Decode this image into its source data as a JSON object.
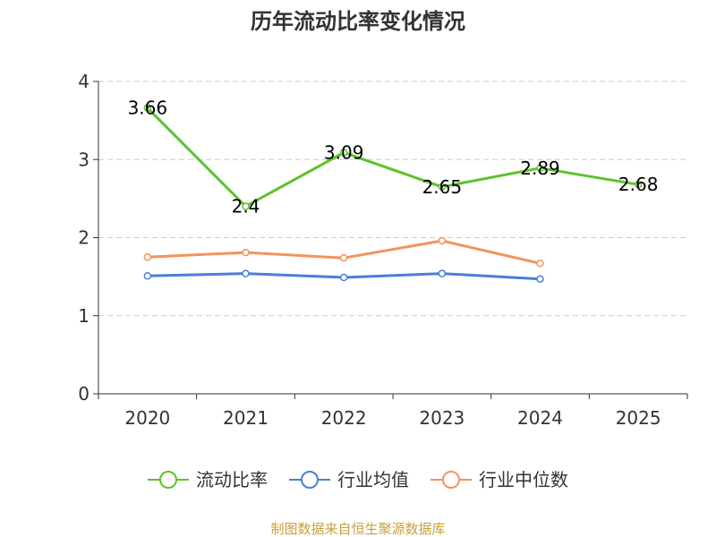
{
  "chart_data": {
    "type": "line",
    "title": "历年流动比率变化情况",
    "categories": [
      "2020",
      "2021",
      "2022",
      "2023",
      "2024",
      "2025"
    ],
    "y_ticks": [
      "0",
      "1",
      "2",
      "3",
      "4"
    ],
    "ylim": [
      0,
      4
    ],
    "grid": true,
    "legend_position": "bottom",
    "series": [
      {
        "name": "流动比率",
        "color": "#5ec22b",
        "values": [
          3.66,
          2.4,
          3.09,
          2.65,
          2.89,
          2.68
        ],
        "labels": [
          "3.66",
          "2.4",
          "3.09",
          "2.65",
          "2.89",
          "2.68"
        ],
        "show_labels": true
      },
      {
        "name": "行业均值",
        "color": "#4a7fd6",
        "values": [
          1.51,
          1.54,
          1.49,
          1.54,
          1.47,
          null
        ],
        "show_labels": false
      },
      {
        "name": "行业中位数",
        "color": "#f3935c",
        "values": [
          1.75,
          1.81,
          1.74,
          1.96,
          1.67,
          null
        ],
        "show_labels": false
      }
    ],
    "source": "制图数据来自恒生聚源数据库"
  }
}
